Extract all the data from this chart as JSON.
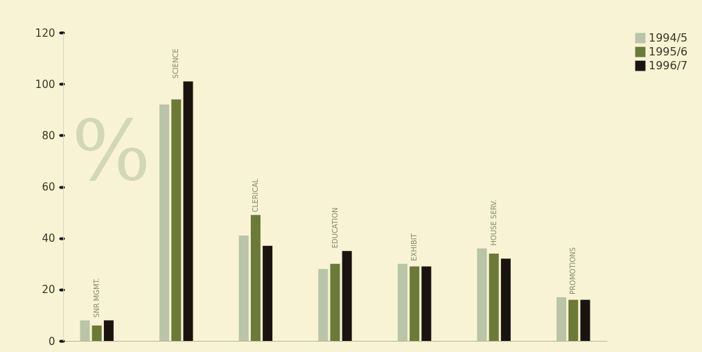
{
  "chart_data": {
    "type": "bar",
    "ylabel": "%",
    "categories": [
      "SNR MGMT.",
      "SCIENCE",
      "CLERICAL",
      "EDUCATION",
      "EXHIBIT",
      "HOUSE SERV.",
      "PROMOTIONS"
    ],
    "series": [
      {
        "name": "1994/5",
        "color": "#b9c4a8",
        "values": [
          8,
          92,
          41,
          28,
          30,
          36,
          17
        ]
      },
      {
        "name": "1995/6",
        "color": "#6b7a37",
        "values": [
          6,
          94,
          49,
          30,
          29,
          34,
          16
        ]
      },
      {
        "name": "1996/7",
        "color": "#1a1410",
        "values": [
          8,
          101,
          37,
          35,
          29,
          32,
          16
        ]
      }
    ],
    "ylim": [
      0,
      120
    ],
    "yticks": [
      0,
      20,
      40,
      60,
      80,
      100,
      120
    ],
    "grid": false,
    "legend": "right"
  }
}
